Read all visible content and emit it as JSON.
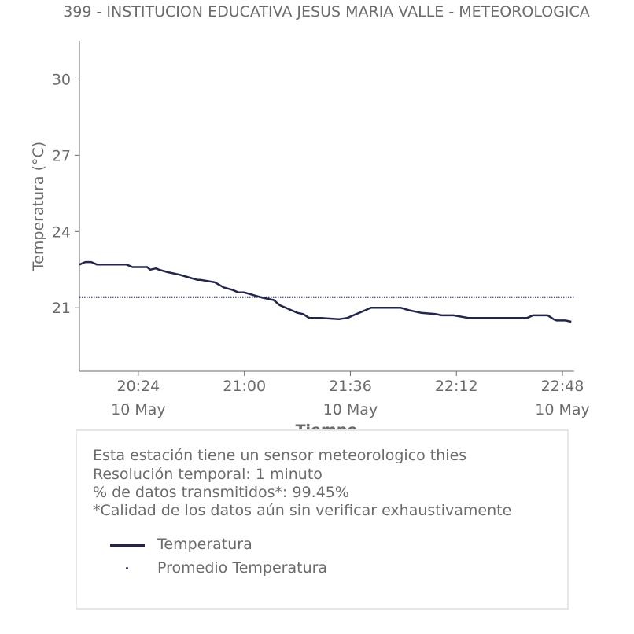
{
  "chart_data": {
    "type": "line",
    "title": "399 - INSTITUCION EDUCATIVA JESUS MARIA VALLE - METEOROLOGICA",
    "xlabel": "Tiempo",
    "ylabel": "Temperatura (°C)",
    "ylim": [
      18.5,
      31.5
    ],
    "xlim": [
      "20:04",
      "22:52"
    ],
    "x_ticks": [
      {
        "time": "20:24",
        "label": "20:24",
        "sublabel": "10 May"
      },
      {
        "time": "21:00",
        "label": "21:00",
        "sublabel": ""
      },
      {
        "time": "21:36",
        "label": "21:36",
        "sublabel": "10 May"
      },
      {
        "time": "22:12",
        "label": "22:12",
        "sublabel": ""
      },
      {
        "time": "22:48",
        "label": "22:48",
        "sublabel": "10 May"
      }
    ],
    "y_ticks": [
      21,
      24,
      27,
      30
    ],
    "grid": false,
    "series": [
      {
        "name": "Temperatura",
        "color": "#23264a",
        "style": "solid",
        "x": [
          "20:04",
          "20:06",
          "20:08",
          "20:10",
          "20:15",
          "20:20",
          "20:22",
          "20:27",
          "20:28",
          "20:30",
          "20:31",
          "20:34",
          "20:38",
          "20:41",
          "20:44",
          "20:45",
          "20:50",
          "20:53",
          "20:56",
          "20:58",
          "21:00",
          "21:03",
          "21:06",
          "21:08",
          "21:10",
          "21:12",
          "21:14",
          "21:16",
          "21:18",
          "21:20",
          "21:22",
          "21:26",
          "21:32",
          "21:35",
          "21:37",
          "21:39",
          "21:41",
          "21:43",
          "21:45",
          "21:53",
          "21:56",
          "22:00",
          "22:05",
          "22:07",
          "22:11",
          "22:16",
          "22:19",
          "22:36",
          "22:38",
          "22:43",
          "22:45",
          "22:46",
          "22:49",
          "22:51"
        ],
        "y": [
          22.7,
          22.8,
          22.8,
          22.7,
          22.7,
          22.7,
          22.6,
          22.6,
          22.5,
          22.55,
          22.5,
          22.4,
          22.3,
          22.2,
          22.1,
          22.1,
          22.0,
          21.8,
          21.7,
          21.6,
          21.6,
          21.5,
          21.4,
          21.35,
          21.3,
          21.1,
          21.0,
          20.9,
          20.8,
          20.75,
          20.6,
          20.6,
          20.55,
          20.6,
          20.7,
          20.8,
          20.9,
          21.0,
          21.0,
          21.0,
          20.9,
          20.8,
          20.75,
          20.7,
          20.7,
          20.6,
          20.6,
          20.6,
          20.7,
          20.7,
          20.55,
          20.5,
          20.5,
          20.45
        ]
      },
      {
        "name": "Promedio Temperatura",
        "color": "#23264a",
        "style": "dotted",
        "x": [
          "20:04",
          "22:52"
        ],
        "y": [
          21.42,
          21.42
        ]
      }
    ]
  },
  "info_box": {
    "lines": [
      "Esta estación tiene un sensor meteorologico thies",
      "Resolución temporal: 1 minuto",
      "% de datos transmitidos*: 99.45%",
      "*Calidad de los datos aún sin verificar exhaustivamente"
    ]
  },
  "legend": {
    "items": [
      {
        "label": "Temperatura",
        "icon": "solid-line"
      },
      {
        "label": "Promedio Temperatura",
        "icon": "dot-marker"
      }
    ]
  }
}
